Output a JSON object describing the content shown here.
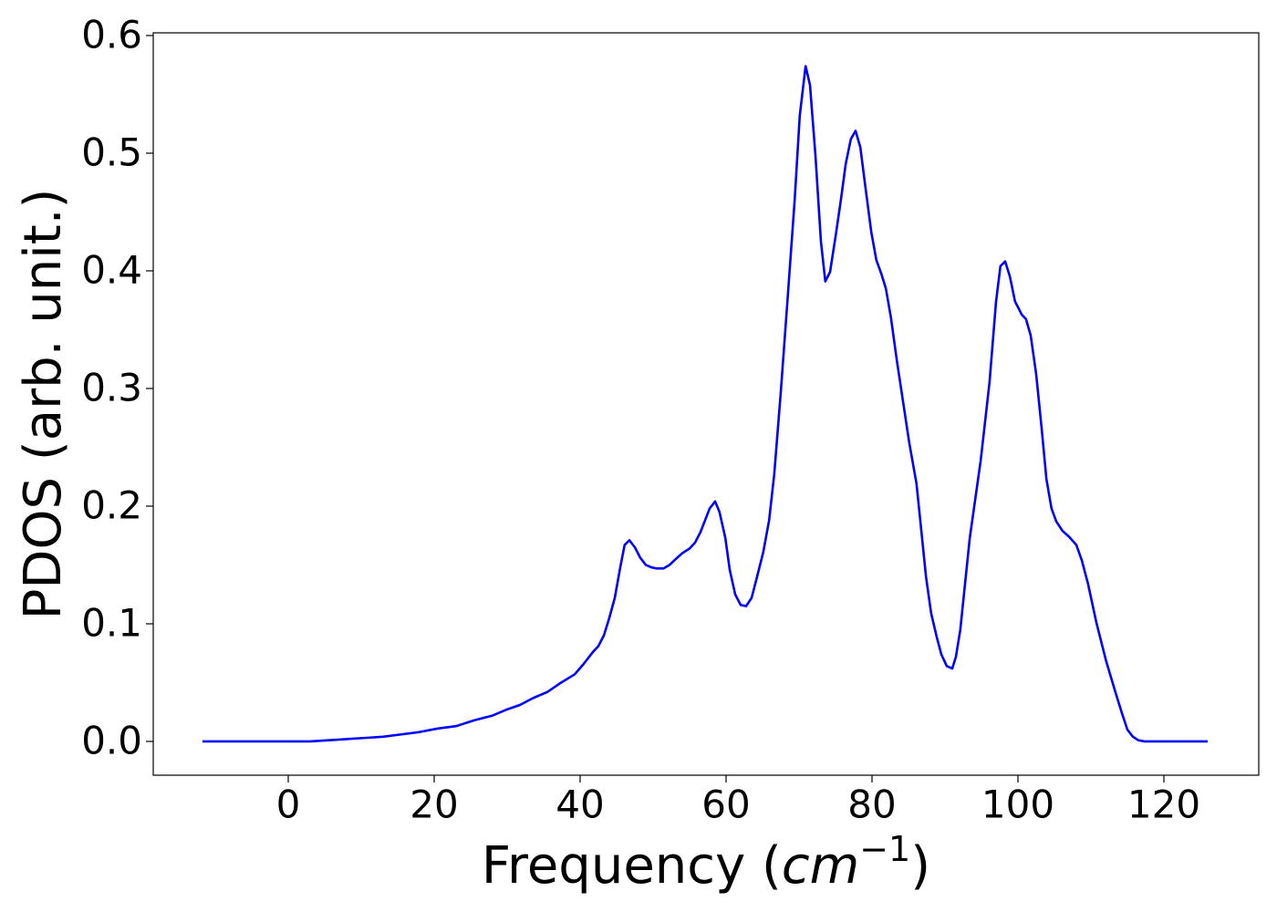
{
  "chart_data": {
    "type": "line",
    "xlabel": [
      "Frequency (",
      "cm",
      "−1",
      ")"
    ],
    "ylabel": "PDOS (arb. unit.)",
    "xlim": [
      -18.5,
      133
    ],
    "ylim": [
      -0.0287,
      0.6023
    ],
    "xticks": [
      0,
      20,
      40,
      60,
      80,
      100,
      120
    ],
    "yticks": [
      {
        "value": 0,
        "label": "0.0"
      },
      0.1,
      0.2,
      0.3,
      0.4,
      0.5,
      0.6
    ],
    "grid": false,
    "series": [
      {
        "color": "#0000ff",
        "x": [
          -11.75,
          3,
          5.5,
          8,
          10.5,
          13,
          15.5,
          18,
          20.5,
          23,
          25.5,
          28,
          29.9,
          31.75,
          33.6,
          35.5,
          37.4,
          39.25,
          40.5,
          41.75,
          42.5,
          43.25,
          44,
          44.75,
          45.5,
          46.1,
          46.75,
          47.5,
          48.25,
          49,
          49.75,
          50.5,
          51.4,
          52.25,
          53.1,
          54,
          55,
          55.75,
          56.5,
          57.25,
          57.75,
          58.5,
          59.1,
          59.9,
          60.5,
          61.25,
          62,
          62.75,
          63.5,
          64.25,
          65.1,
          65.9,
          66.6,
          67.5,
          68.5,
          69.4,
          70.1,
          70.9,
          71.5,
          72.25,
          73,
          73.6,
          74.25,
          75,
          75.75,
          76.4,
          77.1,
          77.75,
          78.4,
          79.1,
          79.9,
          80.6,
          81.25,
          81.9,
          82.6,
          83.4,
          84.25,
          85.1,
          86.1,
          87.4,
          88.1,
          88.9,
          89.5,
          90.25,
          91,
          91.5,
          92.1,
          93.4,
          94.9,
          96.1,
          97,
          97.6,
          98.25,
          98.9,
          99.6,
          100.5,
          101.1,
          101.75,
          102.5,
          103.25,
          103.9,
          104.6,
          105.25,
          106.1,
          107,
          108,
          108.75,
          109.6,
          110.75,
          112.1,
          113.4,
          114.25,
          115,
          115.75,
          116.5,
          117.4,
          126
        ],
        "values": [
          0,
          0,
          0.001,
          0.002,
          0.003,
          0.004,
          0.006,
          0.008,
          0.011,
          0.013,
          0.018,
          0.022,
          0.027,
          0.031,
          0.037,
          0.042,
          0.05,
          0.057,
          0.066,
          0.076,
          0.081,
          0.09,
          0.105,
          0.122,
          0.148,
          0.167,
          0.171,
          0.165,
          0.156,
          0.15,
          0.148,
          0.147,
          0.147,
          0.15,
          0.155,
          0.16,
          0.164,
          0.169,
          0.178,
          0.19,
          0.198,
          0.204,
          0.195,
          0.173,
          0.146,
          0.125,
          0.116,
          0.115,
          0.122,
          0.14,
          0.161,
          0.188,
          0.227,
          0.297,
          0.382,
          0.46,
          0.532,
          0.574,
          0.558,
          0.498,
          0.425,
          0.391,
          0.399,
          0.429,
          0.461,
          0.491,
          0.512,
          0.519,
          0.505,
          0.471,
          0.433,
          0.409,
          0.398,
          0.385,
          0.36,
          0.324,
          0.289,
          0.254,
          0.219,
          0.14,
          0.109,
          0.088,
          0.074,
          0.064,
          0.062,
          0.072,
          0.095,
          0.173,
          0.239,
          0.305,
          0.374,
          0.404,
          0.408,
          0.395,
          0.374,
          0.363,
          0.359,
          0.345,
          0.312,
          0.266,
          0.223,
          0.198,
          0.187,
          0.179,
          0.174,
          0.167,
          0.154,
          0.134,
          0.101,
          0.068,
          0.041,
          0.024,
          0.01,
          0.004,
          0.001,
          0,
          0
        ]
      }
    ]
  }
}
